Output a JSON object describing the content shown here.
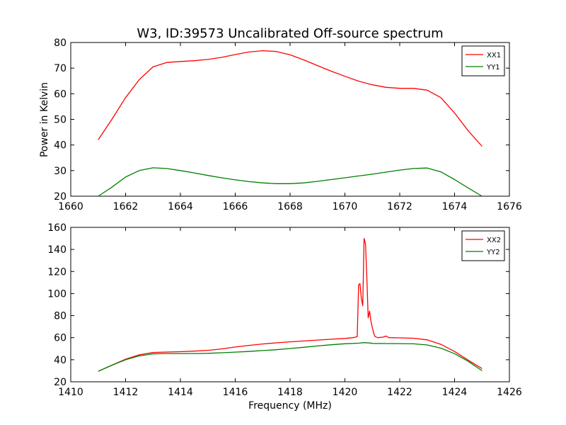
{
  "title": "W3, ID:39573 Uncalibrated Off-source spectrum",
  "colors": {
    "red": "#ff0000",
    "green": "#007f00",
    "axis": "#000000",
    "background": "#ffffff"
  },
  "chart_data": [
    {
      "type": "line",
      "title": "W3, ID:39573 Uncalibrated Off-source spectrum",
      "xlabel": "",
      "ylabel": "Power in Kelvin",
      "xlim": [
        1660,
        1676
      ],
      "ylim": [
        20,
        80
      ],
      "xticks": [
        1660,
        1662,
        1664,
        1666,
        1668,
        1670,
        1672,
        1674,
        1676
      ],
      "xtick_labels": [
        "1660",
        "1662",
        "1664",
        "1666",
        "1668",
        "1670",
        "1672",
        "1674",
        "1676"
      ],
      "yticks": [
        20,
        30,
        40,
        50,
        60,
        70,
        80
      ],
      "ytick_labels": [
        "20",
        "30",
        "40",
        "50",
        "60",
        "70",
        "80"
      ],
      "grid": false,
      "legend": "top-right",
      "series": [
        {
          "name": "XX1",
          "color": "#ff0000",
          "x": [
            1661.0,
            1661.5,
            1662.0,
            1662.5,
            1663.0,
            1663.5,
            1664.0,
            1664.5,
            1665.0,
            1665.5,
            1666.0,
            1666.5,
            1667.0,
            1667.5,
            1668.0,
            1668.5,
            1669.0,
            1669.5,
            1670.0,
            1670.5,
            1671.0,
            1671.5,
            1672.0,
            1672.5,
            1673.0,
            1673.5,
            1674.0,
            1674.5,
            1675.0
          ],
          "y": [
            42,
            50,
            58.5,
            65.5,
            70.5,
            72.2,
            72.6,
            72.9,
            73.4,
            74.2,
            75.3,
            76.3,
            76.8,
            76.5,
            75.2,
            73.2,
            71,
            68.8,
            66.8,
            64.9,
            63.5,
            62.5,
            62.1,
            62.1,
            61.4,
            58.5,
            52.5,
            45.5,
            39.5
          ]
        },
        {
          "name": "YY1",
          "color": "#007f00",
          "x": [
            1661.0,
            1661.5,
            1662.0,
            1662.5,
            1663.0,
            1663.5,
            1664.0,
            1664.5,
            1665.0,
            1665.5,
            1666.0,
            1666.5,
            1667.0,
            1667.5,
            1668.0,
            1668.5,
            1669.0,
            1669.5,
            1670.0,
            1670.5,
            1671.0,
            1671.5,
            1672.0,
            1672.5,
            1673.0,
            1673.5,
            1674.0,
            1674.5,
            1675.0
          ],
          "y": [
            20,
            23.5,
            27.5,
            30,
            31.1,
            30.8,
            30,
            29.1,
            28.1,
            27.2,
            26.4,
            25.7,
            25.2,
            24.9,
            24.9,
            25.2,
            25.8,
            26.5,
            27.2,
            27.9,
            28.6,
            29.4,
            30.2,
            30.8,
            31,
            29.5,
            26.5,
            23.2,
            20
          ]
        }
      ]
    },
    {
      "type": "line",
      "title": "",
      "xlabel": "Frequency (MHz)",
      "ylabel": "",
      "xlim": [
        1410,
        1426
      ],
      "ylim": [
        20,
        160
      ],
      "xticks": [
        1410,
        1412,
        1414,
        1416,
        1418,
        1420,
        1422,
        1424,
        1426
      ],
      "xtick_labels": [
        "1410",
        "1412",
        "1414",
        "1416",
        "1418",
        "1420",
        "1422",
        "1424",
        "1426"
      ],
      "yticks": [
        20,
        40,
        60,
        80,
        100,
        120,
        140,
        160
      ],
      "ytick_labels": [
        "20",
        "40",
        "60",
        "80",
        "100",
        "120",
        "140",
        "160"
      ],
      "grid": false,
      "legend": "top-right",
      "series": [
        {
          "name": "XX2",
          "color": "#ff0000",
          "x": [
            1411.0,
            1411.5,
            1412.0,
            1412.5,
            1413.0,
            1413.5,
            1414.0,
            1414.5,
            1415.0,
            1415.5,
            1416.0,
            1416.5,
            1417.0,
            1417.5,
            1418.0,
            1418.5,
            1419.0,
            1419.5,
            1420.0,
            1420.3,
            1420.45,
            1420.5,
            1420.55,
            1420.6,
            1420.65,
            1420.7,
            1420.75,
            1420.8,
            1420.85,
            1420.9,
            1420.95,
            1421.0,
            1421.05,
            1421.1,
            1421.2,
            1421.4,
            1421.5,
            1421.6,
            1422.0,
            1422.5,
            1423.0,
            1423.5,
            1424.0,
            1424.5,
            1425.0
          ],
          "y": [
            29.5,
            35,
            40.5,
            44.5,
            46.5,
            47,
            47.3,
            47.8,
            48.5,
            49.8,
            51.5,
            53,
            54.3,
            55.3,
            56.2,
            57,
            57.8,
            58.6,
            59.3,
            60,
            61,
            108,
            109,
            96,
            89,
            150,
            145,
            115,
            78,
            84,
            75,
            69,
            64,
            61,
            60,
            60.5,
            61.5,
            60,
            59.8,
            59.5,
            58,
            54,
            47.5,
            39.5,
            32
          ]
        },
        {
          "name": "YY2",
          "color": "#007f00",
          "x": [
            1411.0,
            1411.5,
            1412.0,
            1412.5,
            1413.0,
            1413.5,
            1414.0,
            1414.5,
            1415.0,
            1415.5,
            1416.0,
            1416.5,
            1417.0,
            1417.5,
            1418.0,
            1418.5,
            1419.0,
            1419.5,
            1420.0,
            1420.5,
            1420.7,
            1420.9,
            1421.0,
            1421.5,
            1422.0,
            1422.5,
            1423.0,
            1423.5,
            1424.0,
            1424.5,
            1425.0
          ],
          "y": [
            29.5,
            35,
            40,
            43.5,
            45.3,
            45.6,
            45.6,
            45.6,
            45.8,
            46.3,
            46.9,
            47.5,
            48.3,
            49.1,
            50.2,
            51.3,
            52.5,
            53.6,
            54.5,
            55,
            55.5,
            55.2,
            54.8,
            54.7,
            54.6,
            54.4,
            53.4,
            50.5,
            45.5,
            38.5,
            30
          ]
        }
      ]
    }
  ]
}
